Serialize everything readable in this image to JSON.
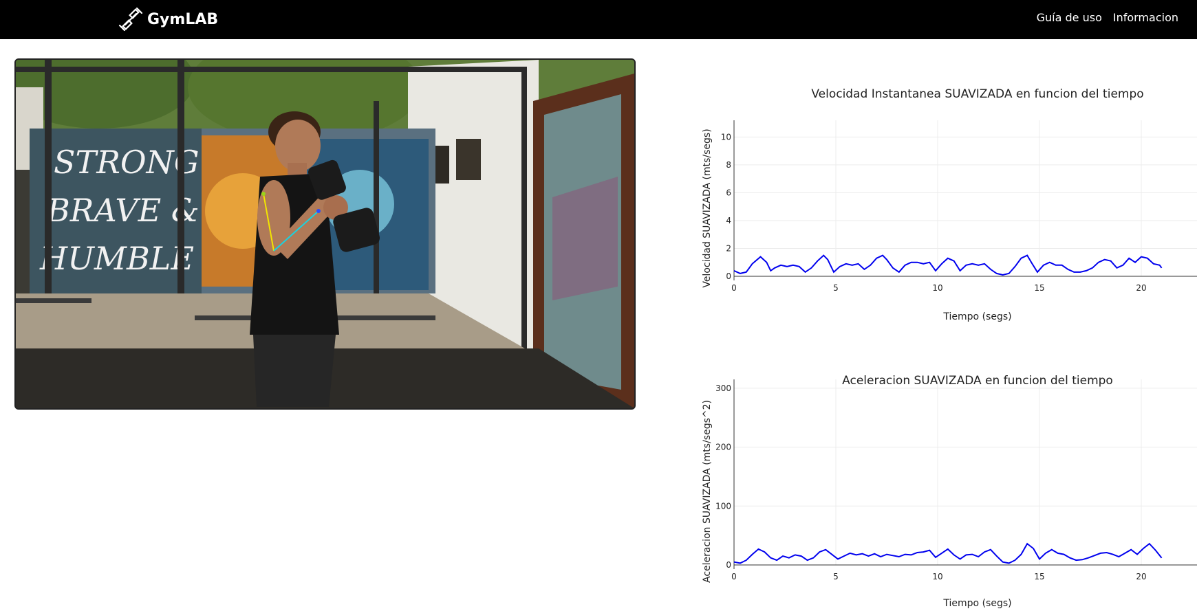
{
  "navbar": {
    "brand": "GymLAB",
    "brand_icon": "dumbbell-icon",
    "links": [
      "Guía de uso",
      "Informacion"
    ]
  },
  "video": {
    "mural_lines": [
      "STRONG",
      "BRAVE &",
      "HUMBLE"
    ],
    "pose_colors": {
      "upper_arm": "#f2e600",
      "forearm": "#19d3e0",
      "shoulder_joint": "#9bd31a",
      "wrist_joint": "#2a4bff"
    }
  },
  "charts": [
    {
      "title": "Velocidad Instantanea SUAVIZADA en funcion del tiempo",
      "xlabel": "Tiempo (segs)",
      "ylabel": "Velocidad SUAVIZADA (mts/segs)"
    },
    {
      "title": "Aceleracion SUAVIZADA en funcion del tiempo",
      "xlabel": "Tiempo (segs)",
      "ylabel": "Aceleracion SUAVIZADA (mts/segs^2)"
    }
  ],
  "chart_data": [
    {
      "type": "line",
      "title": "Velocidad Instantanea SUAVIZADA en funcion del tiempo",
      "xlabel": "Tiempo (segs)",
      "ylabel": "Velocidad SUAVIZADA (mts/segs)",
      "xlim": [
        0,
        21
      ],
      "ylim": [
        0,
        11.2
      ],
      "xticks": [
        0,
        5,
        10,
        15,
        20
      ],
      "yticks": [
        0,
        2,
        4,
        6,
        8,
        10
      ],
      "grid": true,
      "line_color": "#0000ee",
      "x": [
        0,
        0.3,
        0.6,
        0.9,
        1.3,
        1.6,
        1.8,
        2.0,
        2.3,
        2.6,
        2.9,
        3.2,
        3.5,
        3.8,
        4.1,
        4.4,
        4.6,
        4.9,
        5.2,
        5.5,
        5.8,
        6.1,
        6.4,
        6.7,
        7.0,
        7.3,
        7.5,
        7.8,
        8.1,
        8.4,
        8.7,
        9.0,
        9.3,
        9.6,
        9.9,
        10.2,
        10.5,
        10.8,
        11.1,
        11.4,
        11.7,
        12.0,
        12.3,
        12.6,
        12.9,
        13.2,
        13.5,
        13.8,
        14.1,
        14.4,
        14.6,
        14.9,
        15.2,
        15.5,
        15.8,
        16.1,
        16.4,
        16.7,
        17.0,
        17.3,
        17.6,
        17.9,
        18.2,
        18.5,
        18.8,
        19.1,
        19.4,
        19.7,
        20.0,
        20.3,
        20.6,
        20.9,
        21.0
      ],
      "y": [
        0.4,
        0.2,
        0.3,
        0.9,
        1.4,
        1.0,
        0.4,
        0.6,
        0.8,
        0.7,
        0.8,
        0.7,
        0.3,
        0.6,
        1.1,
        1.5,
        1.2,
        0.3,
        0.7,
        0.9,
        0.8,
        0.9,
        0.5,
        0.8,
        1.3,
        1.5,
        1.2,
        0.6,
        0.3,
        0.8,
        1.0,
        1.0,
        0.9,
        1.0,
        0.4,
        0.9,
        1.3,
        1.1,
        0.4,
        0.8,
        0.9,
        0.8,
        0.9,
        0.5,
        0.2,
        0.1,
        0.2,
        0.7,
        1.3,
        1.5,
        1.0,
        0.3,
        0.8,
        1.0,
        0.8,
        0.8,
        0.5,
        0.3,
        0.3,
        0.4,
        0.6,
        1.0,
        1.2,
        1.1,
        0.6,
        0.8,
        1.3,
        1.0,
        1.4,
        1.3,
        0.9,
        0.8,
        0.6
      ]
    },
    {
      "type": "line",
      "title": "Aceleracion SUAVIZADA en funcion del tiempo",
      "xlabel": "Tiempo (segs)",
      "ylabel": "Aceleracion SUAVIZADA (mts/segs^2)",
      "xlim": [
        0,
        21
      ],
      "ylim": [
        0,
        315
      ],
      "xticks": [
        0,
        5,
        10,
        15,
        20
      ],
      "yticks": [
        0,
        100,
        200,
        300
      ],
      "grid": true,
      "line_color": "#0000ee",
      "x": [
        0,
        0.3,
        0.6,
        0.9,
        1.2,
        1.5,
        1.8,
        2.1,
        2.4,
        2.7,
        3.0,
        3.3,
        3.6,
        3.9,
        4.2,
        4.5,
        4.8,
        5.1,
        5.4,
        5.7,
        6.0,
        6.3,
        6.6,
        6.9,
        7.2,
        7.5,
        7.8,
        8.1,
        8.4,
        8.7,
        9.0,
        9.3,
        9.6,
        9.9,
        10.2,
        10.5,
        10.8,
        11.1,
        11.4,
        11.7,
        12.0,
        12.3,
        12.6,
        12.9,
        13.2,
        13.5,
        13.8,
        14.1,
        14.4,
        14.7,
        15.0,
        15.3,
        15.6,
        15.9,
        16.2,
        16.5,
        16.8,
        17.1,
        17.4,
        17.7,
        18.0,
        18.3,
        18.6,
        18.9,
        19.2,
        19.5,
        19.8,
        20.1,
        20.4,
        20.7,
        21.0
      ],
      "y": [
        5,
        3,
        8,
        18,
        27,
        22,
        12,
        8,
        15,
        12,
        17,
        15,
        8,
        12,
        22,
        26,
        18,
        10,
        15,
        20,
        17,
        19,
        15,
        19,
        14,
        18,
        16,
        14,
        18,
        17,
        21,
        22,
        25,
        13,
        20,
        27,
        17,
        10,
        17,
        18,
        14,
        22,
        26,
        15,
        5,
        3,
        8,
        18,
        36,
        28,
        10,
        20,
        26,
        20,
        18,
        12,
        8,
        9,
        12,
        16,
        20,
        21,
        18,
        14,
        20,
        26,
        18,
        28,
        36,
        25,
        12
      ]
    }
  ]
}
